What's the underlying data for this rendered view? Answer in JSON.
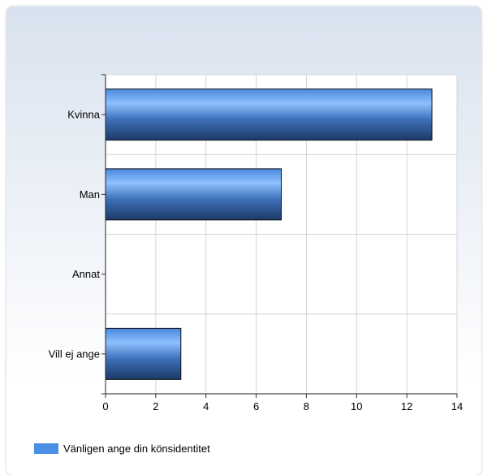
{
  "chart_data": {
    "type": "bar",
    "orientation": "horizontal",
    "categories": [
      "Kvinna",
      "Man",
      "Annat",
      "Vill ej ange"
    ],
    "series": [
      {
        "name": "Vänligen ange din könsidentitet",
        "values": [
          13,
          7,
          0,
          3
        ]
      }
    ],
    "xlim": [
      0,
      14
    ],
    "xticks": [
      "0",
      "2",
      "4",
      "6",
      "8",
      "10",
      "12",
      "14"
    ],
    "title": "",
    "xlabel": "",
    "ylabel": "",
    "grid": true,
    "legend_position": "bottom-left",
    "colors": {
      "bar_light": "#8ec0ff",
      "bar_mid": "#4a88dd",
      "bar_dark": "#1b3a66",
      "grid": "#d4d4d4"
    }
  }
}
